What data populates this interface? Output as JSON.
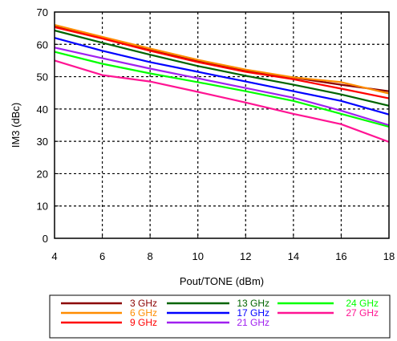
{
  "chart_data": {
    "type": "line",
    "xlabel": "Pout/TONE (dBm)",
    "ylabel": "IM3 (dBc)",
    "xlim": [
      4,
      18
    ],
    "ylim": [
      0,
      70
    ],
    "xticks": [
      4,
      6,
      8,
      10,
      12,
      14,
      16,
      18
    ],
    "yticks": [
      0,
      10,
      20,
      30,
      40,
      50,
      60,
      70
    ],
    "grid": true,
    "legend_position": "bottom",
    "x": [
      4,
      6,
      8,
      10,
      12,
      14,
      16,
      18
    ],
    "series": [
      {
        "name": "3 GHz",
        "color": "#8b0000",
        "values": [
          65.7,
          62.0,
          58.3,
          54.8,
          51.8,
          49.7,
          47.5,
          45.5
        ]
      },
      {
        "name": "6 GHz",
        "color": "#ff8c00",
        "values": [
          66.0,
          62.3,
          58.7,
          55.2,
          52.2,
          49.8,
          48.3,
          44.8
        ]
      },
      {
        "name": "9 GHz",
        "color": "#ff0000",
        "values": [
          65.3,
          61.8,
          58.0,
          54.5,
          51.5,
          49.2,
          46.3,
          43.3
        ]
      },
      {
        "name": "13 GHz",
        "color": "#006400",
        "values": [
          64.3,
          60.5,
          56.8,
          53.3,
          50.3,
          47.5,
          44.5,
          41.0
        ]
      },
      {
        "name": "17 GHz",
        "color": "#0000ff",
        "values": [
          62.0,
          58.0,
          54.5,
          51.5,
          48.5,
          45.5,
          42.5,
          38.3
        ]
      },
      {
        "name": "21 GHz",
        "color": "#a020f0",
        "values": [
          59.0,
          55.7,
          52.5,
          49.5,
          46.5,
          43.5,
          39.5,
          35.0
        ]
      },
      {
        "name": "24 GHz",
        "color": "#00ff00",
        "values": [
          57.7,
          54.0,
          51.0,
          48.3,
          45.5,
          42.5,
          38.5,
          34.5
        ]
      },
      {
        "name": "27 GHz",
        "color": "#ff1493",
        "values": [
          55.0,
          50.5,
          48.5,
          45.3,
          42.0,
          38.5,
          35.3,
          29.8
        ]
      }
    ]
  }
}
